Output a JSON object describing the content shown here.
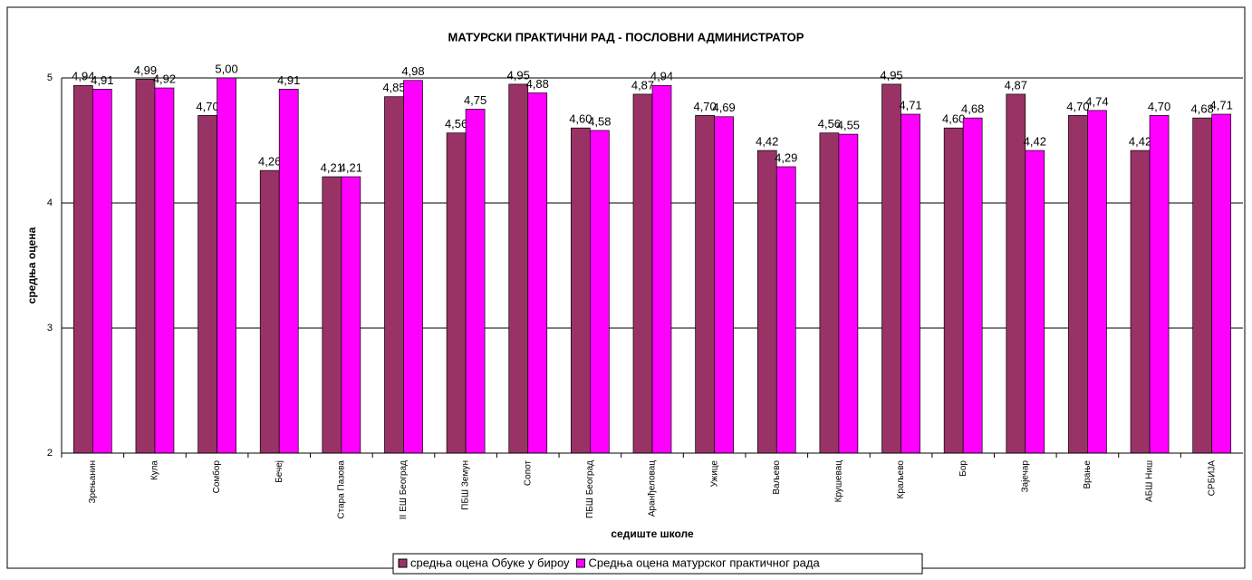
{
  "chart_data": {
    "type": "bar",
    "title": "МАТУРСКИ ПРАКТИЧНИ РАД - ПОСЛОВНИ АДМИНИСТРАТОР",
    "xlabel": "седиште школе",
    "ylabel": "средња оцена",
    "categories": [
      "Зрењанин",
      "Кула",
      "Сомбор",
      "Бечеј",
      "Стара Пазова",
      "II ЕШ Београд",
      "ПБШ Земун",
      "Сопот",
      "ПБШ Београд",
      "Аранђеловац",
      "Ужице",
      "Ваљево",
      "Крушевац",
      "Краљево",
      "Бор",
      "Зајечар",
      "Врање",
      "АБШ Ниш",
      "СРБИЈА"
    ],
    "series": [
      {
        "name": "средња оцена Обуке у бироу",
        "color": "#993366",
        "values": [
          4.94,
          4.99,
          4.7,
          4.26,
          4.21,
          4.85,
          4.56,
          4.95,
          4.6,
          4.87,
          4.7,
          4.42,
          4.56,
          4.95,
          4.6,
          4.87,
          4.7,
          4.42,
          4.68
        ],
        "value_labels": [
          "4,94",
          "4,99",
          "4,70",
          "4,26",
          "4,21",
          "4,85",
          "4,56",
          "4,95",
          "4,60",
          "4,87",
          "4,70",
          "4,42",
          "4,56",
          "4,95",
          "4,60",
          "4,87",
          "4,70",
          "4,42",
          "4,68"
        ]
      },
      {
        "name": "Средња оцена матурског практичног рада",
        "color": "#ff00ff",
        "values": [
          4.91,
          4.92,
          5.0,
          4.91,
          4.21,
          4.98,
          4.75,
          4.88,
          4.58,
          4.94,
          4.69,
          4.29,
          4.55,
          4.71,
          4.68,
          4.42,
          4.74,
          4.7,
          4.71
        ],
        "value_labels": [
          "4,91",
          "4,92",
          "5,00",
          "4,91",
          "4,21",
          "4,98",
          "4,75",
          "4,88",
          "4,58",
          "4,94",
          "4,69",
          "4,29",
          "4,55",
          "4,71",
          "4,68",
          "4,42",
          "4,74",
          "4,70",
          "4,71"
        ]
      }
    ],
    "ylim": [
      2,
      5
    ],
    "yticks": [
      2,
      3,
      4,
      5
    ],
    "grid": true,
    "legend": "bottom"
  }
}
